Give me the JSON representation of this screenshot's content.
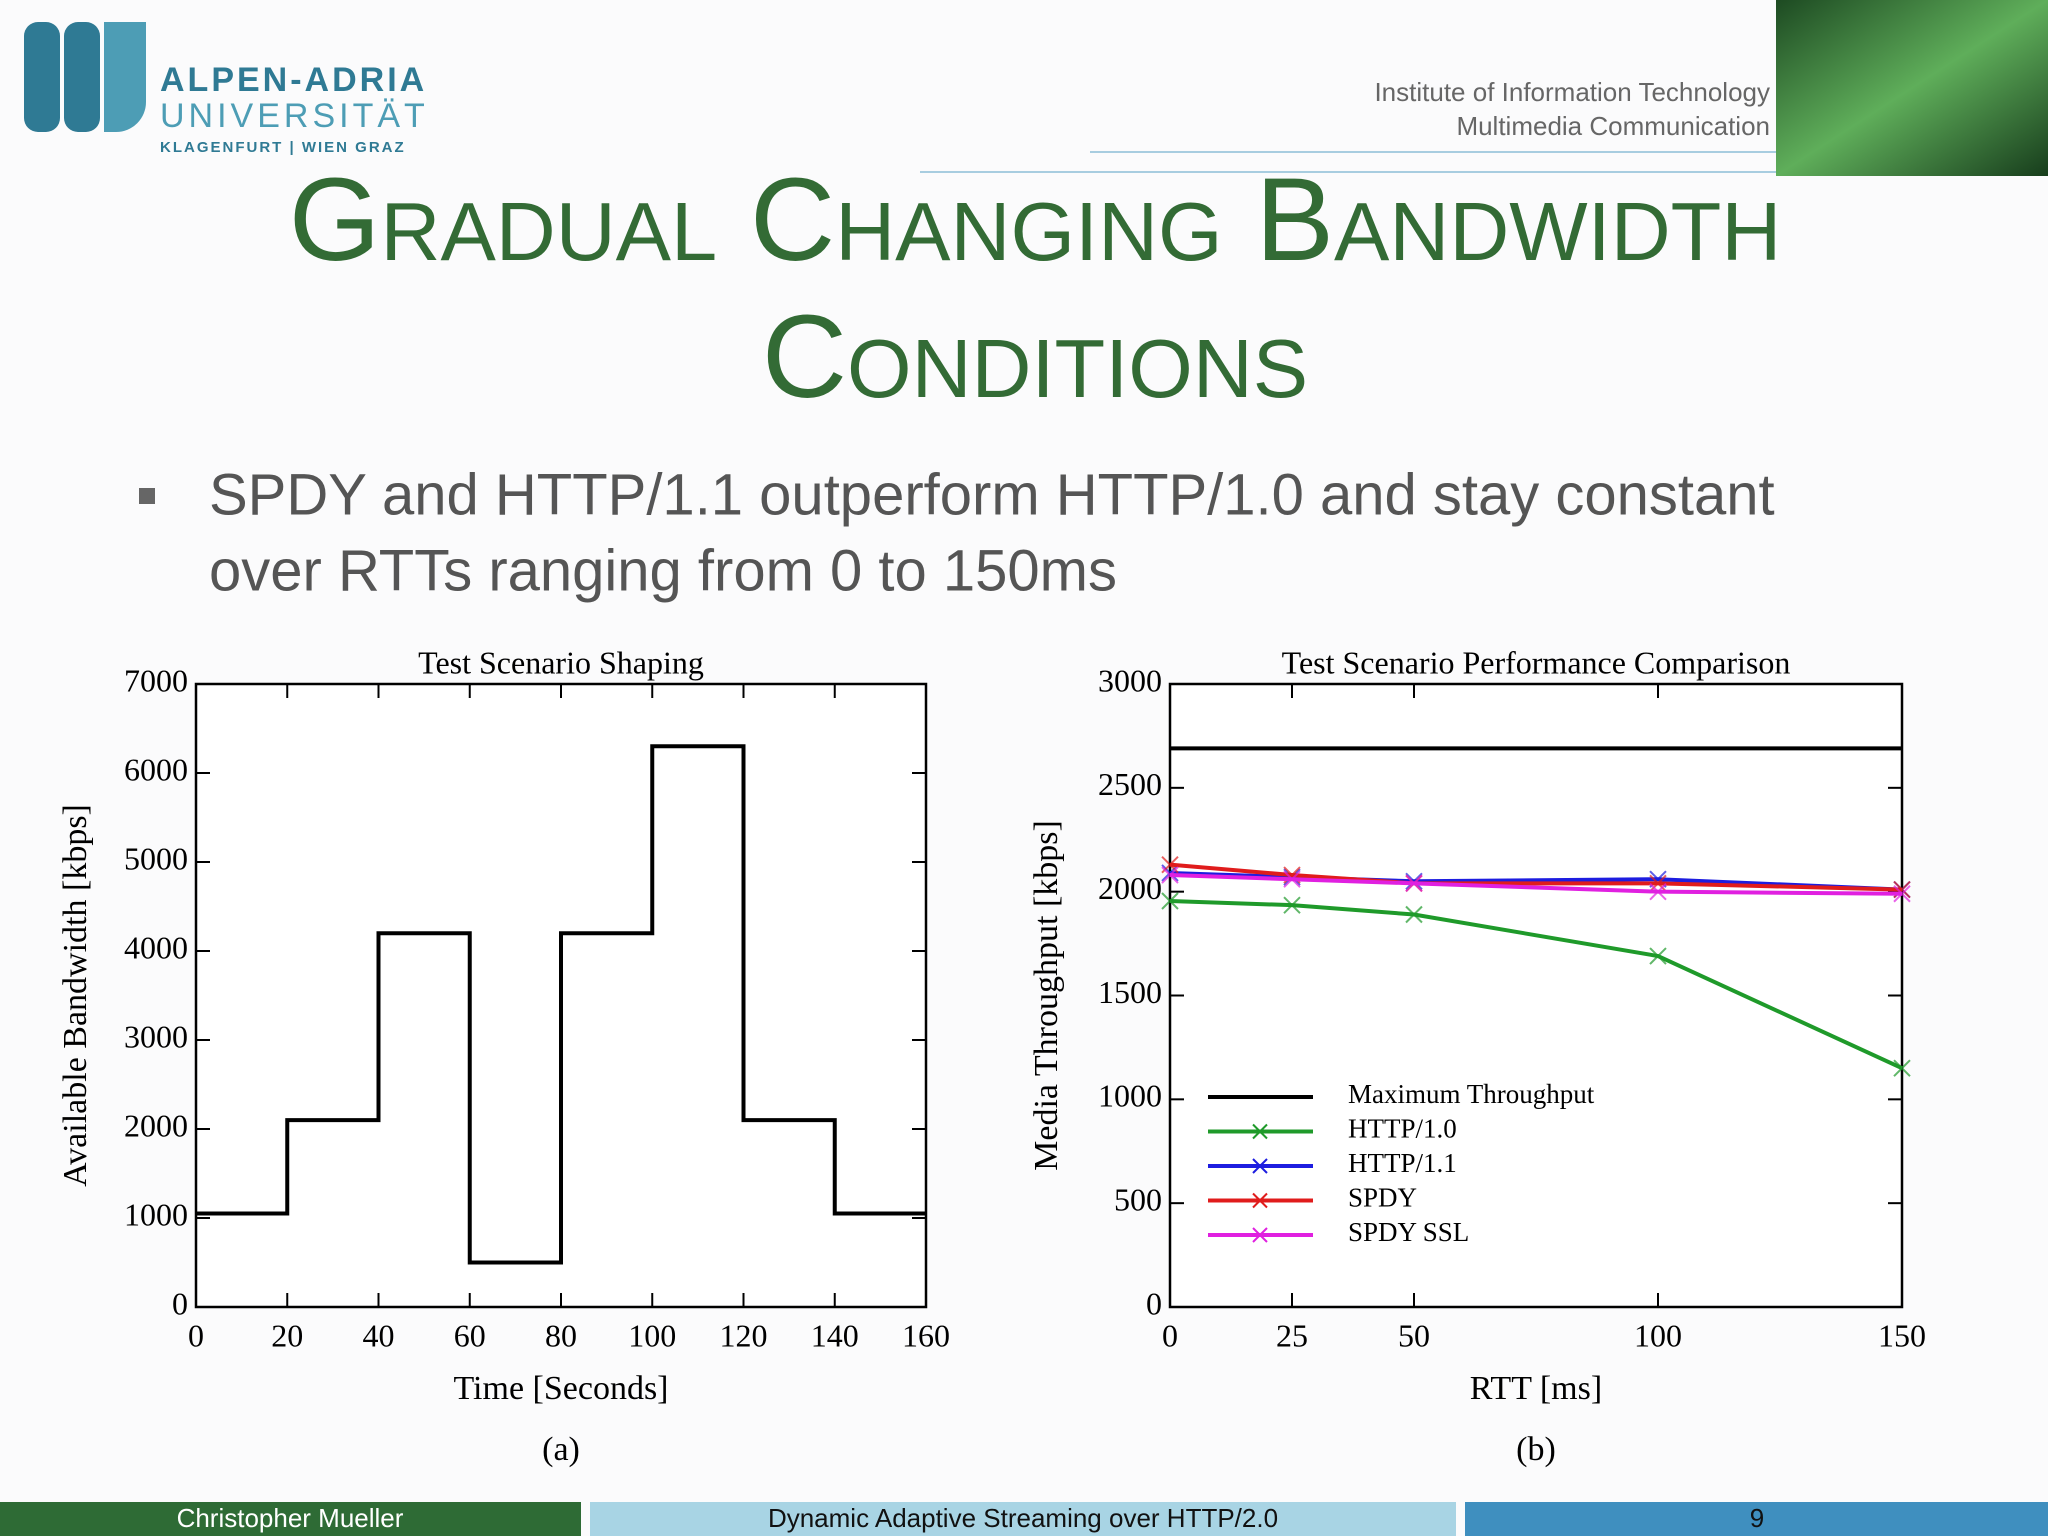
{
  "header": {
    "logo_line1": "ALPEN-ADRIA",
    "logo_line2": "UNIVERSITÄT",
    "logo_line3": "KLAGENFURT | WIEN GRAZ",
    "institute_line1": "Institute of Information Technology",
    "institute_line2": "Multimedia Communication"
  },
  "title_line1": "Gradual Changing Bandwidth",
  "title_line2": "Conditions",
  "bullet": {
    "line1": "SPDY and HTTP/1.1 outperform HTTP/1.0 and stay constant",
    "line2": "over RTTs ranging from 0 to 150ms"
  },
  "chart_data": [
    {
      "type": "line",
      "title": "Test Scenario Shaping",
      "x_label": "Time [Seconds]",
      "y_label": "Available Bandwidth [kbps]",
      "caption": "(a)",
      "x": [
        0,
        20,
        20,
        40,
        40,
        60,
        60,
        80,
        80,
        100,
        100,
        120,
        120,
        140,
        140,
        160
      ],
      "values": [
        1050,
        1050,
        2100,
        2100,
        4200,
        4200,
        500,
        500,
        4200,
        4200,
        6300,
        6300,
        2100,
        2100,
        1050,
        1050
      ],
      "color": "#000000",
      "xlim": [
        0,
        160
      ],
      "xticks": [
        0,
        20,
        40,
        60,
        80,
        100,
        120,
        140,
        160
      ],
      "ylim": [
        0,
        7000
      ],
      "yticks": [
        0,
        1000,
        2000,
        3000,
        4000,
        5000,
        6000,
        7000
      ]
    },
    {
      "type": "line",
      "title": "Test Scenario Performance Comparison",
      "x_label": "RTT [ms]",
      "y_label": "Media Throughput [kbps]",
      "caption": "(b)",
      "x": [
        0,
        25,
        50,
        100,
        150
      ],
      "series": [
        {
          "name": "Maximum Throughput",
          "color": "#000000",
          "values": [
            2690,
            2690,
            2690,
            2690,
            2690
          ]
        },
        {
          "name": "HTTP/1.0",
          "color": "#1f9a2a",
          "marker": "x",
          "values": [
            1955,
            1935,
            1890,
            1690,
            1150
          ]
        },
        {
          "name": "HTTP/1.1",
          "color": "#1d1de0",
          "marker": "x",
          "values": [
            2090,
            2070,
            2050,
            2060,
            2010
          ]
        },
        {
          "name": "SPDY",
          "color": "#e01c1c",
          "marker": "x",
          "values": [
            2130,
            2080,
            2040,
            2040,
            2010
          ]
        },
        {
          "name": "SPDY SSL",
          "color": "#e020e0",
          "marker": "x",
          "values": [
            2080,
            2060,
            2040,
            2000,
            1990
          ]
        }
      ],
      "legend": "lower left",
      "xlim": [
        0,
        150
      ],
      "xticks": [
        0,
        25,
        50,
        100,
        150
      ],
      "ylim": [
        0,
        3000
      ],
      "yticks": [
        0,
        500,
        1000,
        1500,
        2000,
        2500,
        3000
      ]
    }
  ],
  "footer": {
    "author": "Christopher Mueller",
    "talk": "Dynamic Adaptive Streaming over HTTP/2.0",
    "page": "9"
  }
}
